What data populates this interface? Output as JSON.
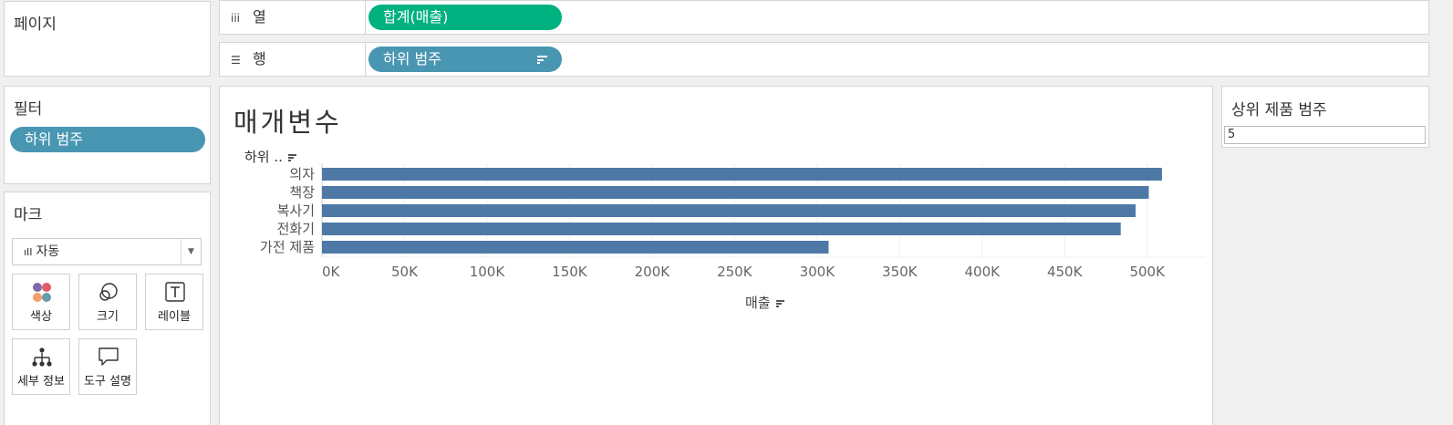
{
  "pages_panel": {
    "title": "페이지"
  },
  "shelves": {
    "columns": {
      "label": "열",
      "icon": "iii",
      "pill": "합계(매출)"
    },
    "rows": {
      "label": "행",
      "icon": "☰",
      "pill": "하위 범주"
    }
  },
  "filters_panel": {
    "title": "필터",
    "pill": "하위 범주"
  },
  "marks_panel": {
    "title": "마크",
    "mark_type": "자동",
    "cards": [
      {
        "label": "색상",
        "icon": "color-dots-icon"
      },
      {
        "label": "크기",
        "icon": "size-circles-icon"
      },
      {
        "label": "레이블",
        "icon": "text-label-icon"
      },
      {
        "label": "세부 정보",
        "icon": "detail-hierarchy-icon"
      },
      {
        "label": "도구 설명",
        "icon": "speech-bubble-icon"
      }
    ]
  },
  "parameter": {
    "title": "상위 제품 범주",
    "value": "5"
  },
  "view": {
    "title": "매개변수",
    "row_header": "하위 .."
  },
  "colors": {
    "pill_green": "#00b180",
    "pill_blue": "#4996b2",
    "bar": "#4e79a7"
  },
  "chart_data": {
    "type": "bar",
    "orientation": "horizontal",
    "categories": [
      "의자",
      "책장",
      "복사기",
      "전화기",
      "가전 제품"
    ],
    "values": [
      509000,
      501000,
      493000,
      484000,
      307000
    ],
    "xlabel": "매출",
    "xlim": [
      0,
      535000
    ],
    "ticks": [
      "0K",
      "50K",
      "100K",
      "150K",
      "200K",
      "250K",
      "300K",
      "350K",
      "400K",
      "450K",
      "500K"
    ],
    "tick_values": [
      0,
      50000,
      100000,
      150000,
      200000,
      250000,
      300000,
      350000,
      400000,
      450000,
      500000
    ],
    "grid": true
  }
}
